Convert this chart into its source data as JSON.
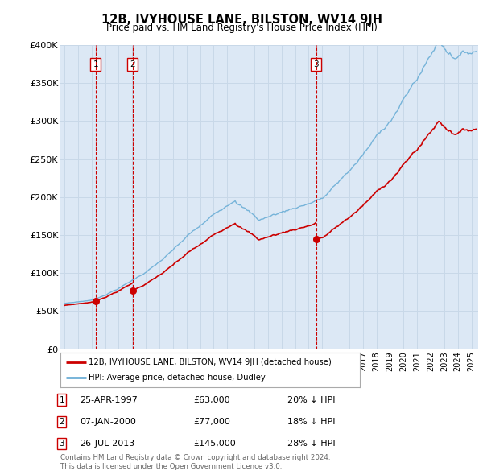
{
  "title": "12B, IVYHOUSE LANE, BILSTON, WV14 9JH",
  "subtitle": "Price paid vs. HM Land Registry's House Price Index (HPI)",
  "property_label": "12B, IVYHOUSE LANE, BILSTON, WV14 9JH (detached house)",
  "hpi_label": "HPI: Average price, detached house, Dudley",
  "ylim": [
    0,
    400000
  ],
  "yticks": [
    0,
    50000,
    100000,
    150000,
    200000,
    250000,
    300000,
    350000,
    400000
  ],
  "ytick_labels": [
    "£0",
    "£50K",
    "£100K",
    "£150K",
    "£200K",
    "£250K",
    "£300K",
    "£350K",
    "£400K"
  ],
  "xlim_start": 1994.7,
  "xlim_end": 2025.5,
  "transactions": [
    {
      "num": 1,
      "date": "25-APR-1997",
      "price": 63000,
      "year": 1997.29,
      "pct": "20%",
      "dir": "↓"
    },
    {
      "num": 2,
      "date": "07-JAN-2000",
      "price": 77000,
      "year": 2000.02,
      "pct": "18%",
      "dir": "↓"
    },
    {
      "num": 3,
      "date": "26-JUL-2013",
      "price": 145000,
      "year": 2013.55,
      "pct": "28%",
      "dir": "↓"
    }
  ],
  "property_line_color": "#cc0000",
  "hpi_line_color": "#6baed6",
  "vline_color": "#cc0000",
  "background_color": "#dce8f5",
  "plot_bg_color": "#ffffff",
  "grid_color": "#c8d8e8",
  "footnote1": "Contains HM Land Registry data © Crown copyright and database right 2024.",
  "footnote2": "This data is licensed under the Open Government Licence v3.0."
}
